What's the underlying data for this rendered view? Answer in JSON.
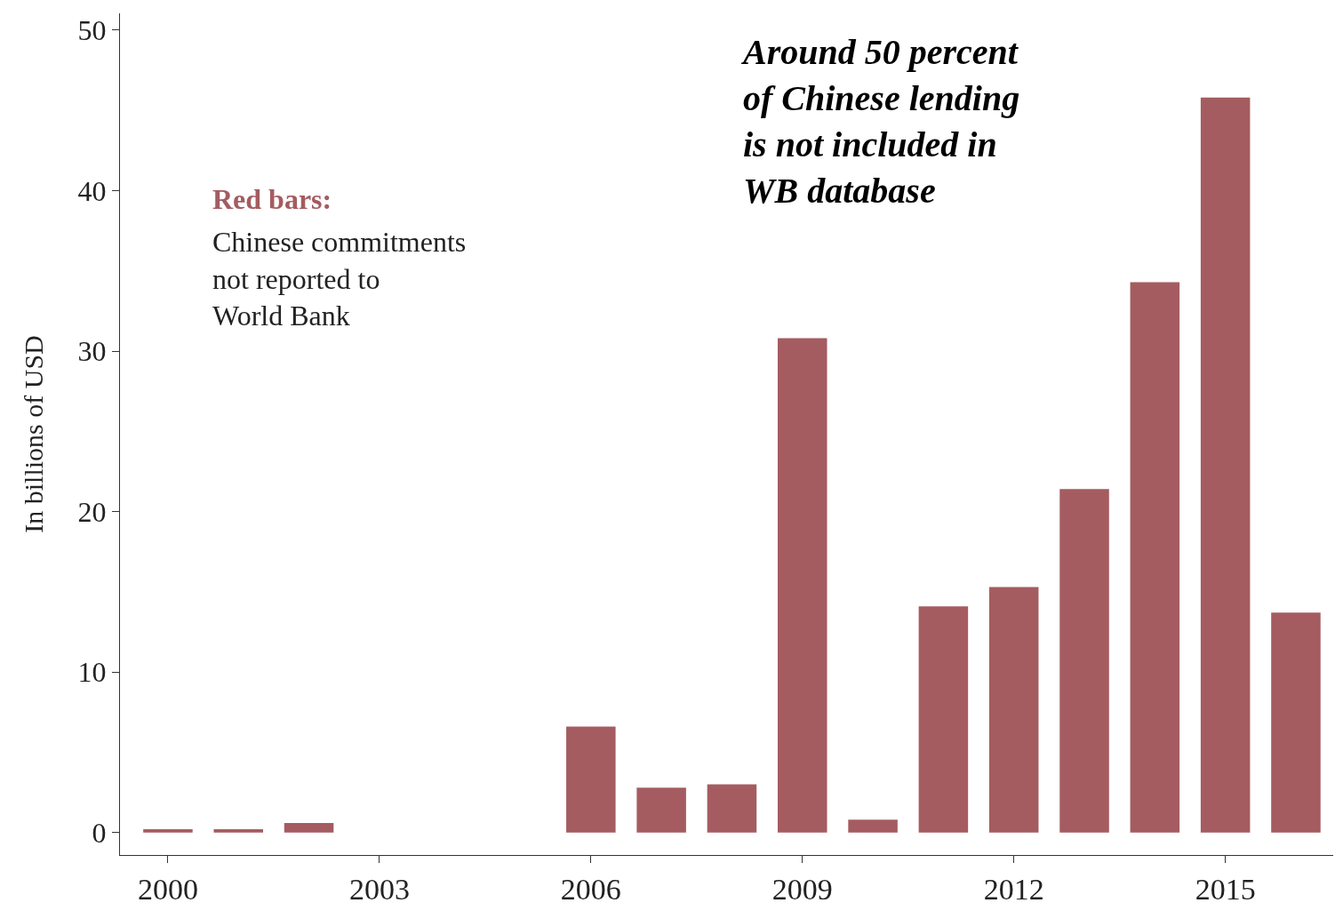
{
  "chart_data": {
    "type": "bar",
    "ylabel": "In billions of USD",
    "x": [
      2000,
      2001,
      2002,
      2006,
      2007,
      2008,
      2009,
      2010,
      2011,
      2012,
      2013,
      2014,
      2015,
      2016
    ],
    "values": [
      0.2,
      0.2,
      0.6,
      6.6,
      2.8,
      3.0,
      30.8,
      0.8,
      14.1,
      15.3,
      21.4,
      34.3,
      45.8,
      13.7
    ],
    "color": "#a45c60",
    "xlim": [
      1999.32,
      2016.53
    ],
    "xticks": [
      2000,
      2003,
      2006,
      2009,
      2012,
      2015
    ],
    "ylim": [
      -1.4,
      51.05
    ],
    "yticks": [
      0,
      10,
      20,
      30,
      40,
      50
    ],
    "annotations": [
      "Red bars:",
      "Chinese commitments\nnot reported to\nWorld Bank",
      "Around 50 percent\nof Chinese lending\nis not included in\nWB database"
    ]
  }
}
